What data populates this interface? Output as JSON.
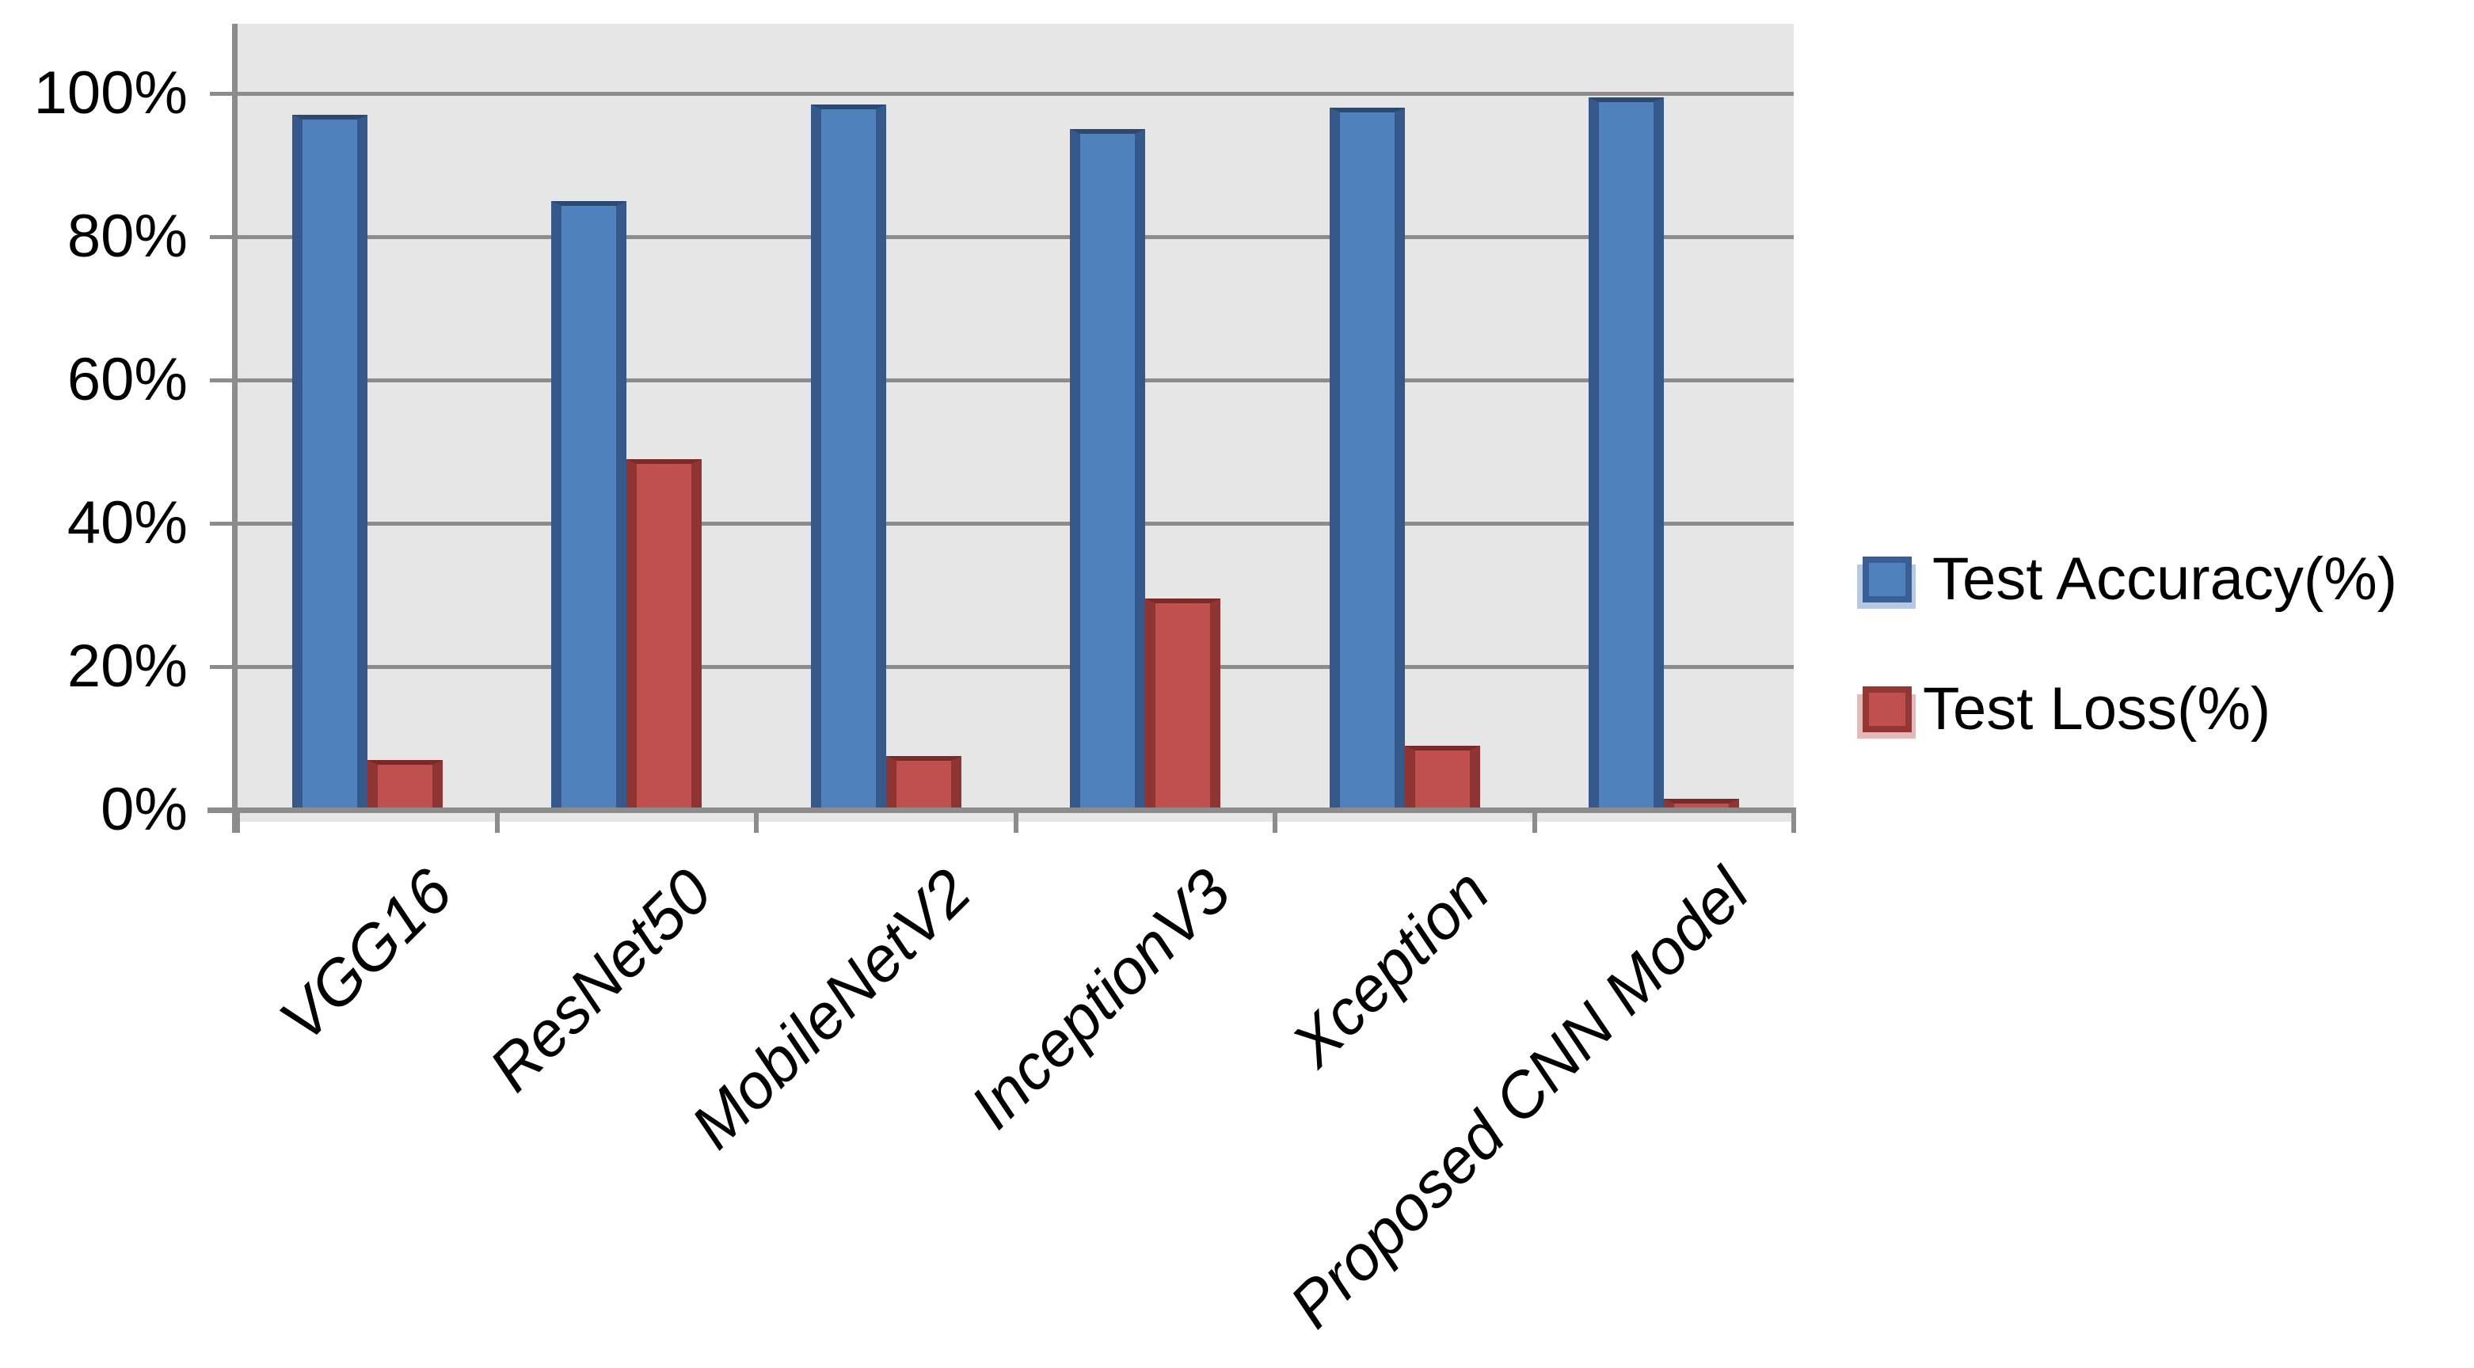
{
  "chart_data": {
    "type": "bar",
    "title": "",
    "categories": [
      "VGG16",
      "ResNet50",
      "MobileNetV2",
      "InceptionV3",
      "Xception",
      "Proposed CNN Model"
    ],
    "series": [
      {
        "name": "Test Accuracy(%)",
        "values": [
          97,
          85,
          98.5,
          95,
          98,
          99.5
        ],
        "fill": "#4F81BD",
        "edge": "#36598C",
        "top_edge": "#2C4A70",
        "legend_border": "#3A5F96",
        "legend_halo": "#B7C9E1"
      },
      {
        "name": "Test Loss(%)",
        "values": [
          7,
          49,
          7.5,
          29.5,
          9,
          1.5
        ],
        "fill": "#C0504D",
        "edge": "#8E3432",
        "top_edge": "#7A2A28",
        "legend_border": "#943634",
        "legend_halo": "#E0BBBA"
      }
    ],
    "y_axis": {
      "ticks": [
        {
          "value": 0,
          "label": "0%"
        },
        {
          "value": 20,
          "label": "20%"
        },
        {
          "value": 40,
          "label": "40%"
        },
        {
          "value": 60,
          "label": "60%"
        },
        {
          "value": 80,
          "label": "80%"
        },
        {
          "value": 100,
          "label": "100%"
        }
      ],
      "max_value": 110
    },
    "x_axis": {
      "label_style": "italic-rotated-45"
    },
    "grid": true,
    "legend_position": "right",
    "colors": {
      "plot_bg": "#E6E6E6",
      "gridline": "#8C8C8C",
      "axis": "#8C8C8C",
      "text": "#000000",
      "page_bg": "#FFFFFF"
    }
  }
}
